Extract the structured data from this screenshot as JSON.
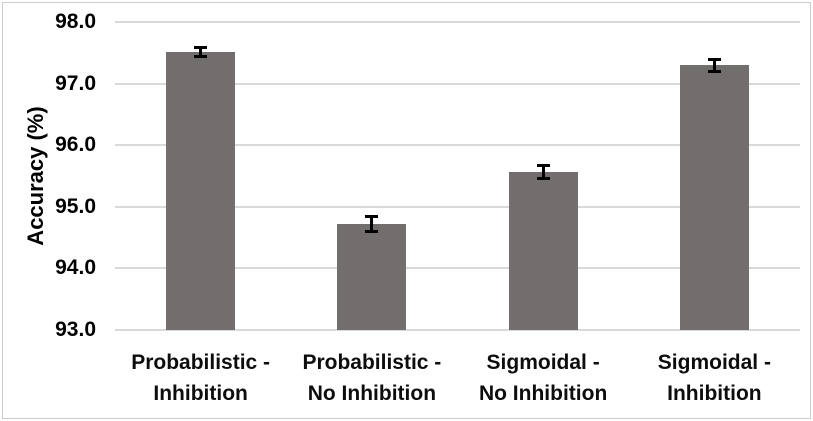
{
  "chart_data": {
    "type": "bar",
    "title": "",
    "xlabel": "",
    "ylabel": "Accuracy (%)",
    "categories": [
      "Probabilistic -\nInhibition",
      "Probabilistic -\nNo Inhibition",
      "Sigmoidal -\nNo Inhibition",
      "Sigmoidal -\nInhibition"
    ],
    "values": [
      97.51,
      94.72,
      95.57,
      97.3
    ],
    "error_bars": [
      0.06,
      0.11,
      0.1,
      0.09
    ],
    "ylim": [
      93.0,
      98.0
    ],
    "yticks": [
      93,
      94,
      95,
      96,
      97,
      98
    ],
    "ytick_labels": [
      "93.0",
      "94.0",
      "95.0",
      "96.0",
      "97.0",
      "98.0"
    ],
    "grid": "horizontal",
    "legend_position": "none",
    "bar_color": "#726E6D",
    "gridline_color": "#d9d9d9",
    "error_color": "#000000",
    "text_color": "#000000"
  }
}
